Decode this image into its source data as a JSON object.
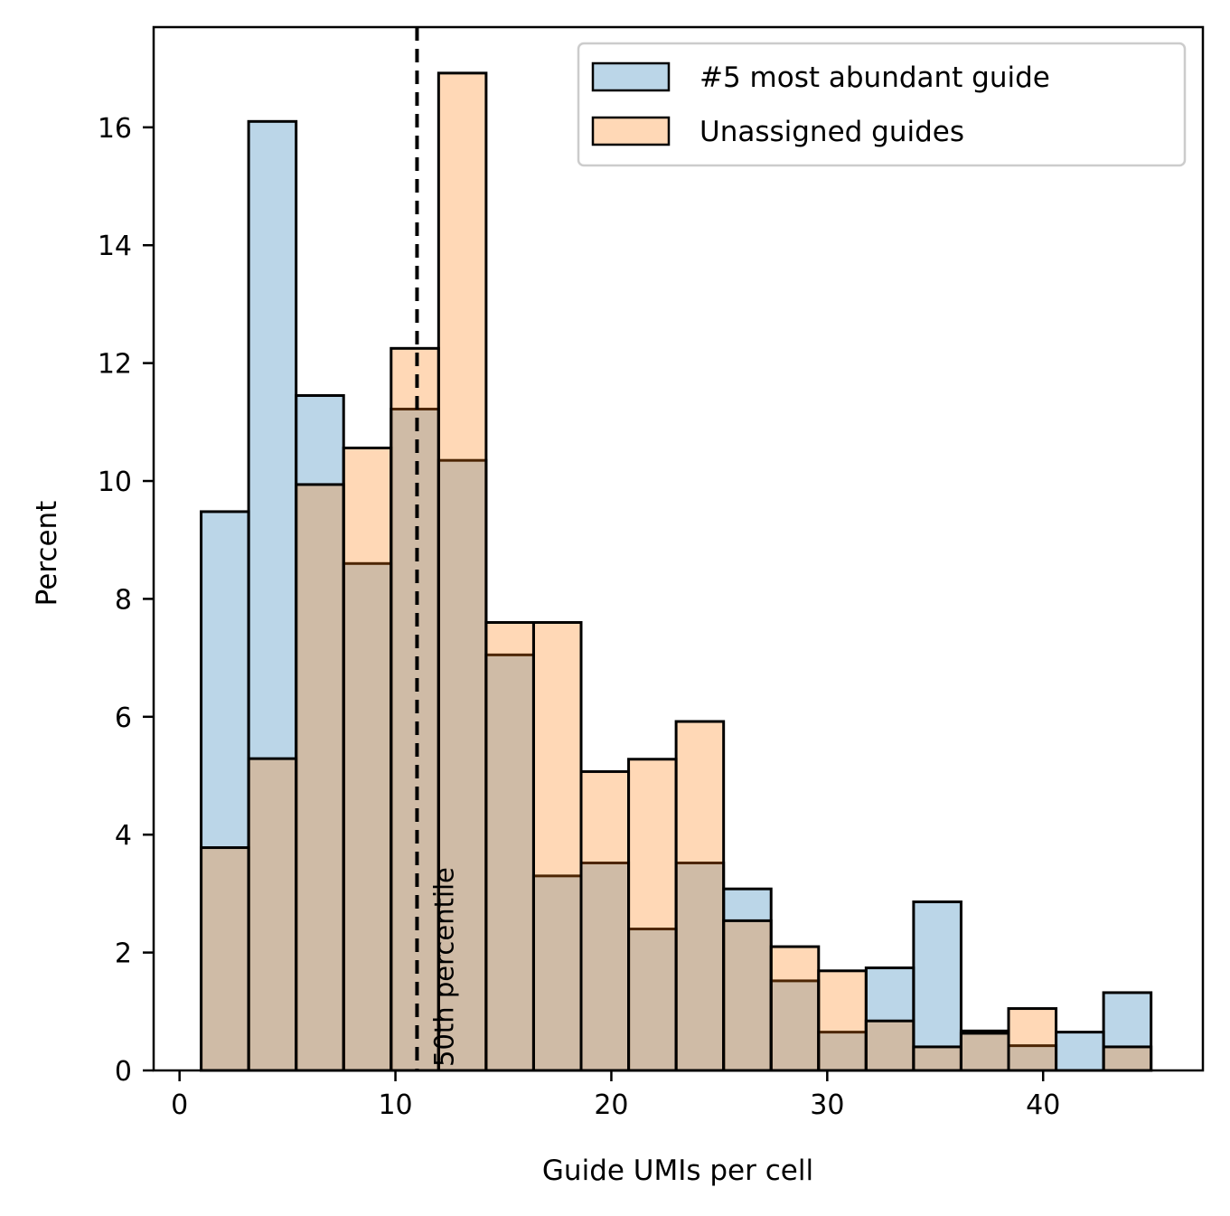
{
  "chart_data": {
    "type": "histogram",
    "xlabel": "Guide UMIs per cell",
    "ylabel": "Percent",
    "xlim": [
      -1.2,
      47.4
    ],
    "ylim": [
      0,
      17.7
    ],
    "xticks": [
      "0",
      "10",
      "20",
      "30",
      "40"
    ],
    "yticks": [
      "0",
      "2",
      "4",
      "6",
      "8",
      "10",
      "12",
      "14",
      "16"
    ],
    "bin_edges": [
      1,
      3.2,
      5.4,
      7.6,
      9.8,
      12,
      14.2,
      16.4,
      18.6,
      20.8,
      23,
      25.2,
      27.4,
      29.6,
      31.8,
      34,
      36.2,
      38.4,
      40.6,
      42.8,
      45
    ],
    "series": [
      {
        "name": "#5 most abundant guide",
        "color": "#1f77b4",
        "values": [
          9.48,
          16.1,
          11.45,
          8.6,
          11.22,
          10.35,
          7.05,
          3.3,
          3.52,
          2.4,
          3.52,
          3.08,
          1.52,
          0.65,
          1.74,
          2.86,
          0.67,
          0.42,
          0.65,
          1.32
        ]
      },
      {
        "name": "Unassigned guides",
        "color": "#ff7f0e",
        "values": [
          3.78,
          5.29,
          9.94,
          10.56,
          12.25,
          16.92,
          7.6,
          7.6,
          5.07,
          5.28,
          5.92,
          2.54,
          2.1,
          1.69,
          0.84,
          0.4,
          0.63,
          1.05,
          0.0,
          0.4
        ]
      }
    ],
    "reference_line": {
      "x": 11,
      "label": "50th percentile",
      "style": "dashed"
    },
    "legend_position": "top-right",
    "grid": false
  }
}
